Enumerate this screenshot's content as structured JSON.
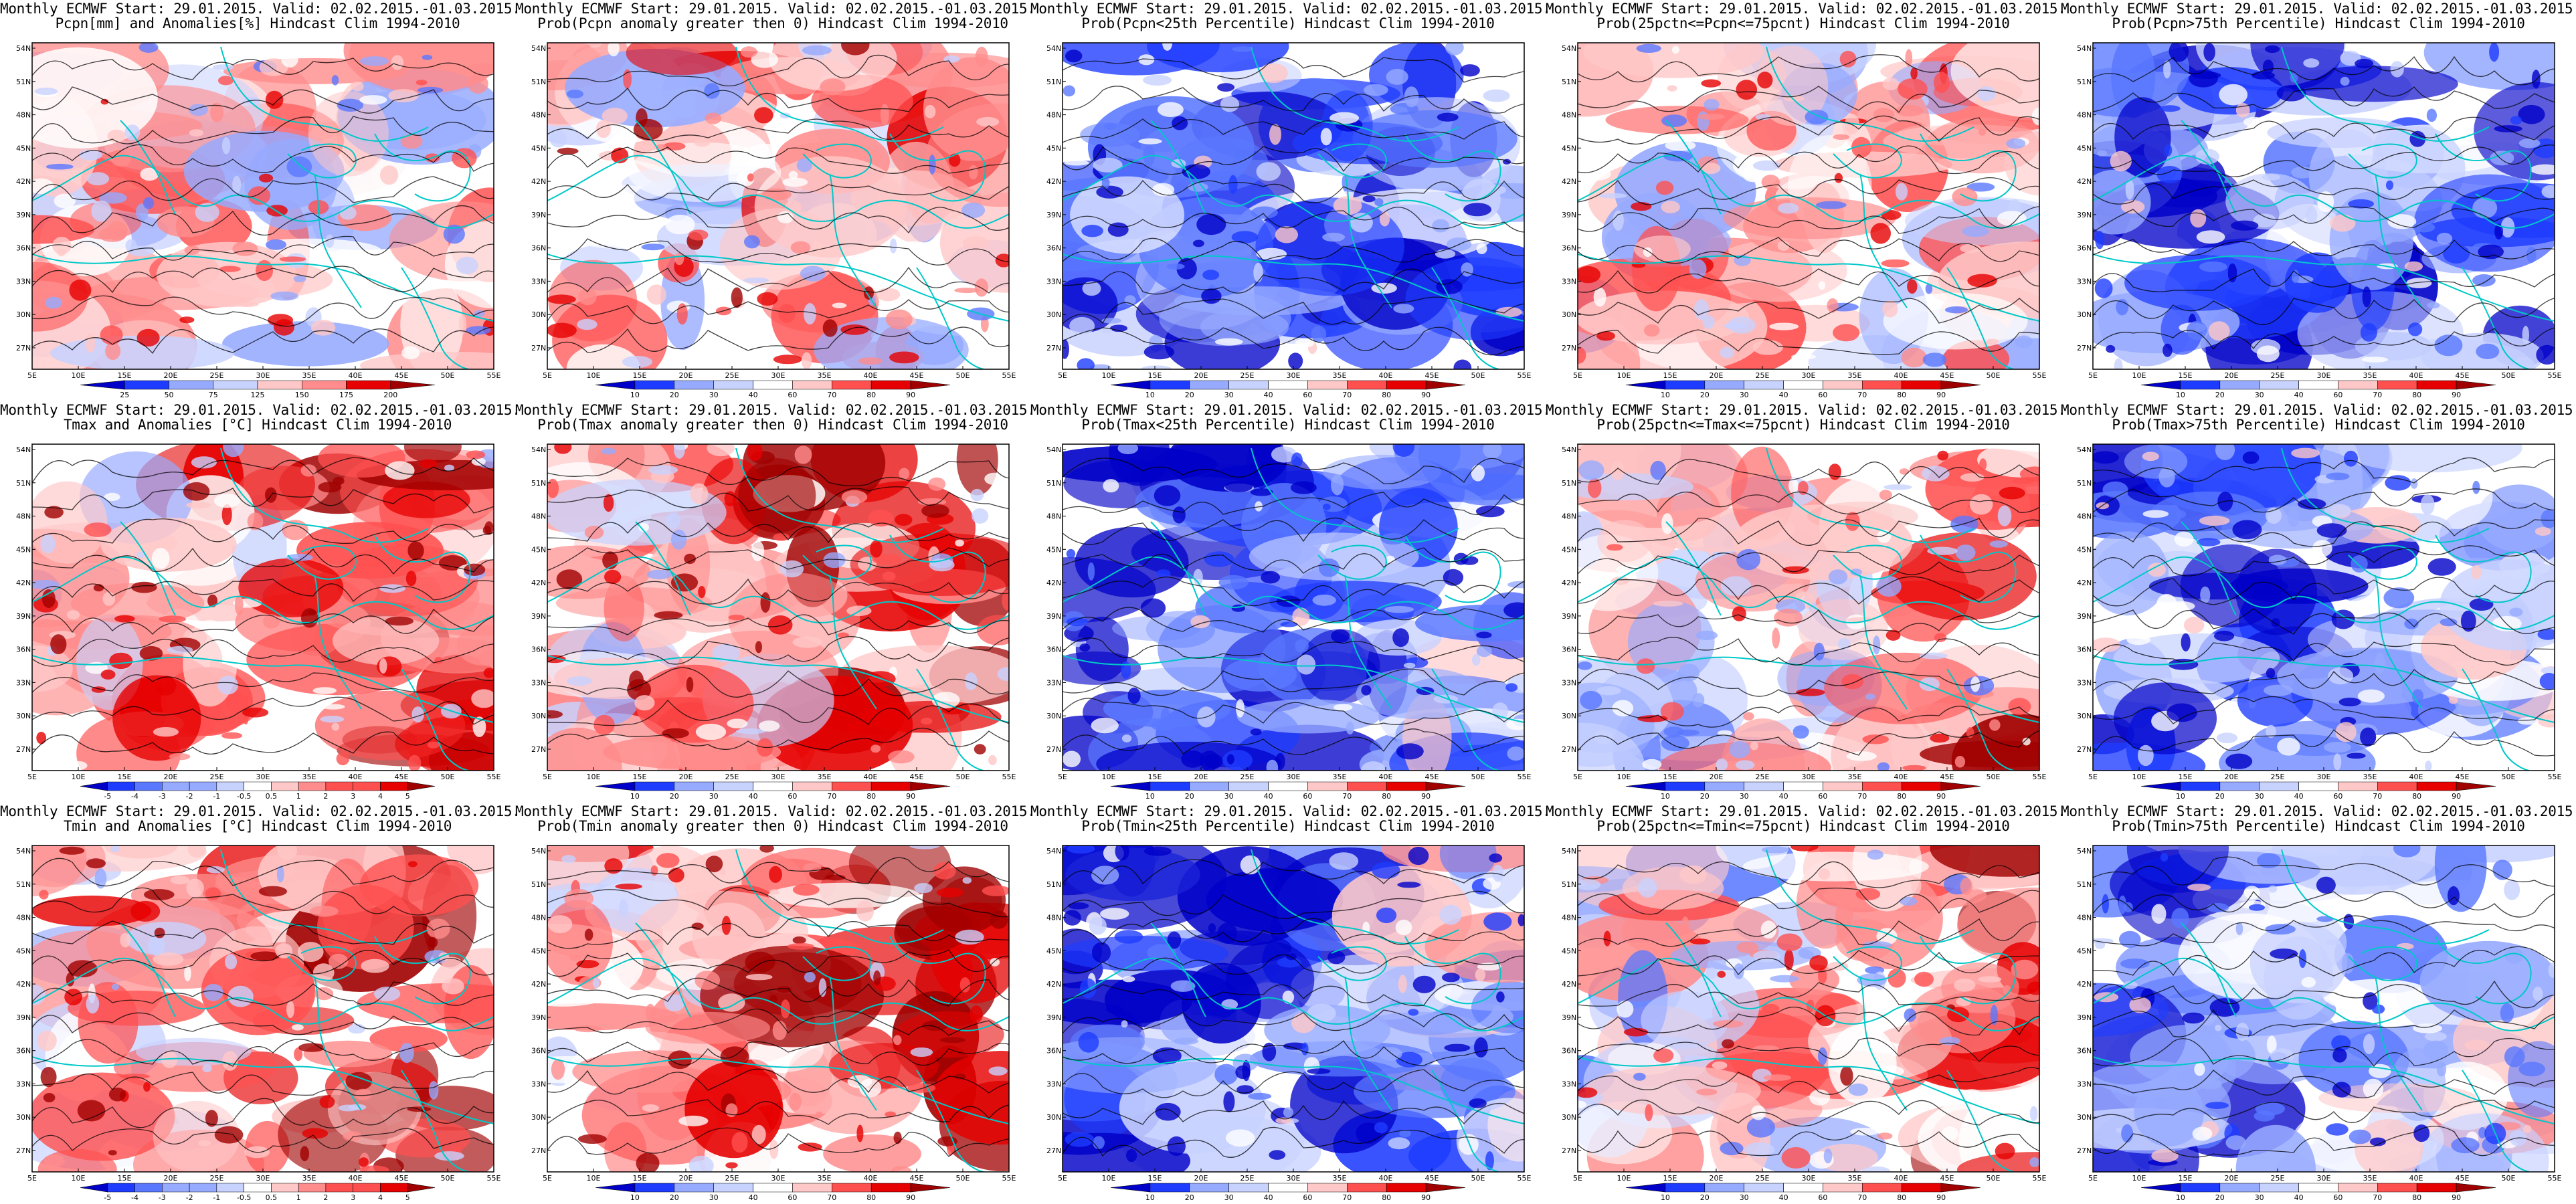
{
  "header": {
    "model_line": "Monthly ECMWF Start: 29.01.2015. Valid: 02.02.2015.-01.03.2015."
  },
  "axes": {
    "lat_ticks": [
      "54N",
      "51N",
      "48N",
      "45N",
      "42N",
      "39N",
      "36N",
      "33N",
      "30N",
      "27N"
    ],
    "lon_ticks": [
      "5E",
      "10E",
      "15E",
      "20E",
      "25E",
      "30E",
      "35E",
      "40E",
      "45E",
      "50E",
      "55E"
    ]
  },
  "colorbars": {
    "precip_pct": [
      "25",
      "50",
      "75",
      "125",
      "150",
      "175",
      "200"
    ],
    "probability": [
      "10",
      "20",
      "30",
      "40",
      "60",
      "70",
      "80",
      "90"
    ],
    "temp_anom": [
      "-5",
      "-4",
      "-3",
      "-2",
      "-1",
      "-0.5",
      "0.5",
      "1",
      "2",
      "3",
      "4",
      "5"
    ]
  },
  "colors": {
    "coast": "#00c8c8",
    "contour": "#000000",
    "scale": [
      "#0000c8",
      "#1e3cff",
      "#5a78ff",
      "#96aaff",
      "#c8d2ff",
      "#ffffff",
      "#ffc8c8",
      "#ff8c8c",
      "#ff5050",
      "#e60000",
      "#a00000"
    ]
  },
  "panels": [
    {
      "title2": "Pcpn[mm] and Anomalies[%] Hindcast Clim 1994-2010",
      "scale": "precip_pct"
    },
    {
      "title2": "Prob(Pcpn anomaly greater then 0) Hindcast Clim 1994-2010",
      "scale": "probability"
    },
    {
      "title2": "Prob(Pcpn<25th Percentile) Hindcast Clim 1994-2010",
      "scale": "probability"
    },
    {
      "title2": "Prob(25pctn<=Pcpn<=75pcnt) Hindcast Clim 1994-2010",
      "scale": "probability"
    },
    {
      "title2": "Prob(Pcpn>75th Percentile) Hindcast Clim 1994-2010",
      "scale": "probability"
    },
    {
      "title2": "Tmax and Anomalies [°C] Hindcast Clim 1994-2010",
      "scale": "temp_anom"
    },
    {
      "title2": "Prob(Tmax anomaly greater then 0) Hindcast Clim 1994-2010",
      "scale": "probability"
    },
    {
      "title2": "Prob(Tmax<25th Percentile) Hindcast Clim 1994-2010",
      "scale": "probability"
    },
    {
      "title2": "Prob(25pctn<=Tmax<=75pcnt) Hindcast Clim 1994-2010",
      "scale": "probability"
    },
    {
      "title2": "Prob(Tmax>75th Percentile) Hindcast Clim 1994-2010",
      "scale": "probability"
    },
    {
      "title2": "Tmin and Anomalies [°C] Hindcast Clim 1994-2010",
      "scale": "temp_anom"
    },
    {
      "title2": "Prob(Tmin anomaly greater then 0) Hindcast Clim 1994-2010",
      "scale": "probability"
    },
    {
      "title2": "Prob(Tmin<25th Percentile) Hindcast Clim 1994-2010",
      "scale": "probability"
    },
    {
      "title2": "Prob(25pctn<=Tmin<=75pcnt) Hindcast Clim 1994-2010",
      "scale": "probability"
    },
    {
      "title2": "Prob(Tmin>75th Percentile) Hindcast Clim 1994-2010",
      "scale": "probability"
    }
  ]
}
